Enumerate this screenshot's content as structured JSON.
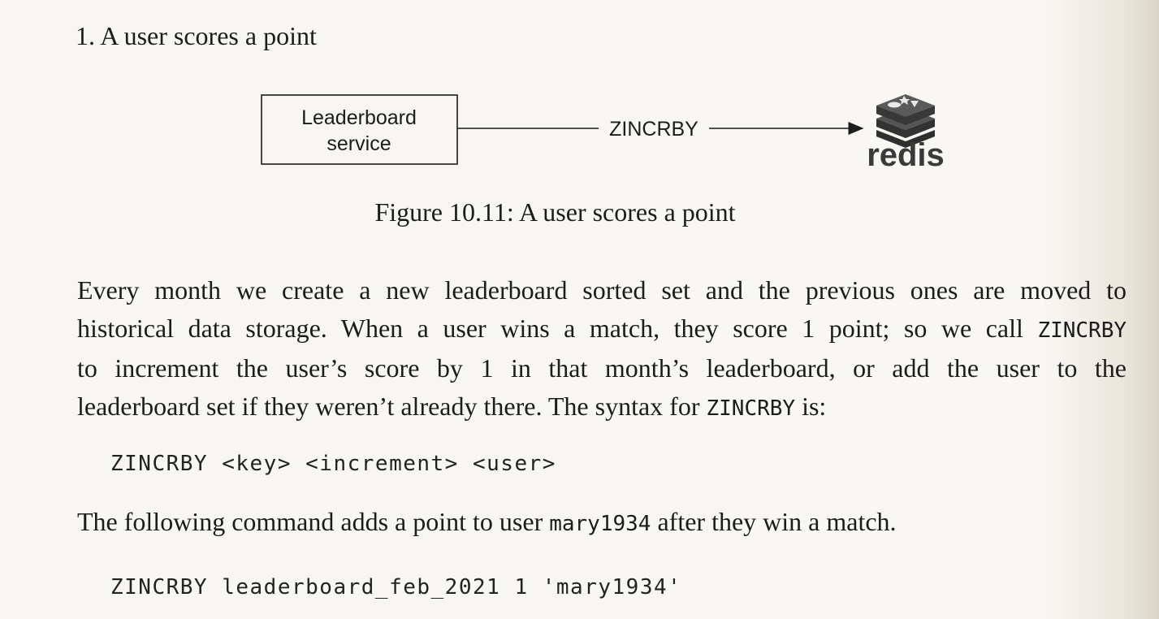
{
  "heading": "1. A user scores a point",
  "diagram": {
    "box_line1": "Leaderboard",
    "box_line2": "service",
    "arrow_label": "ZINCRBY",
    "target_label": "redis",
    "target_icon": "redis-logo-icon"
  },
  "caption": "Figure 10.11: A user scores a point",
  "paragraph1": {
    "line1": "Every month we create a new leaderboard sorted set and the previous ones are moved to",
    "line2_text": "historical data storage. When a user wins a match, they score 1 point; so we call",
    "line2_code": "ZINCRBY",
    "line3": "to increment the user’s score by 1 in that month’s leaderboard, or add the user to the",
    "line4_text": "leaderboard set if they weren’t already there. The syntax for",
    "line4_code": "ZINCRBY",
    "line4_end": "is:"
  },
  "code_syntax": "ZINCRBY <key> <increment> <user>",
  "paragraph2": {
    "text_before": "The following command adds a point to user",
    "code": "mary1934",
    "text_after": "after they win a match."
  },
  "code_example": "ZINCRBY leaderboard_feb_2021 1 'mary1934'",
  "colors": {
    "text": "#1c1c1c",
    "redis_logo": "#3a3a3a"
  }
}
